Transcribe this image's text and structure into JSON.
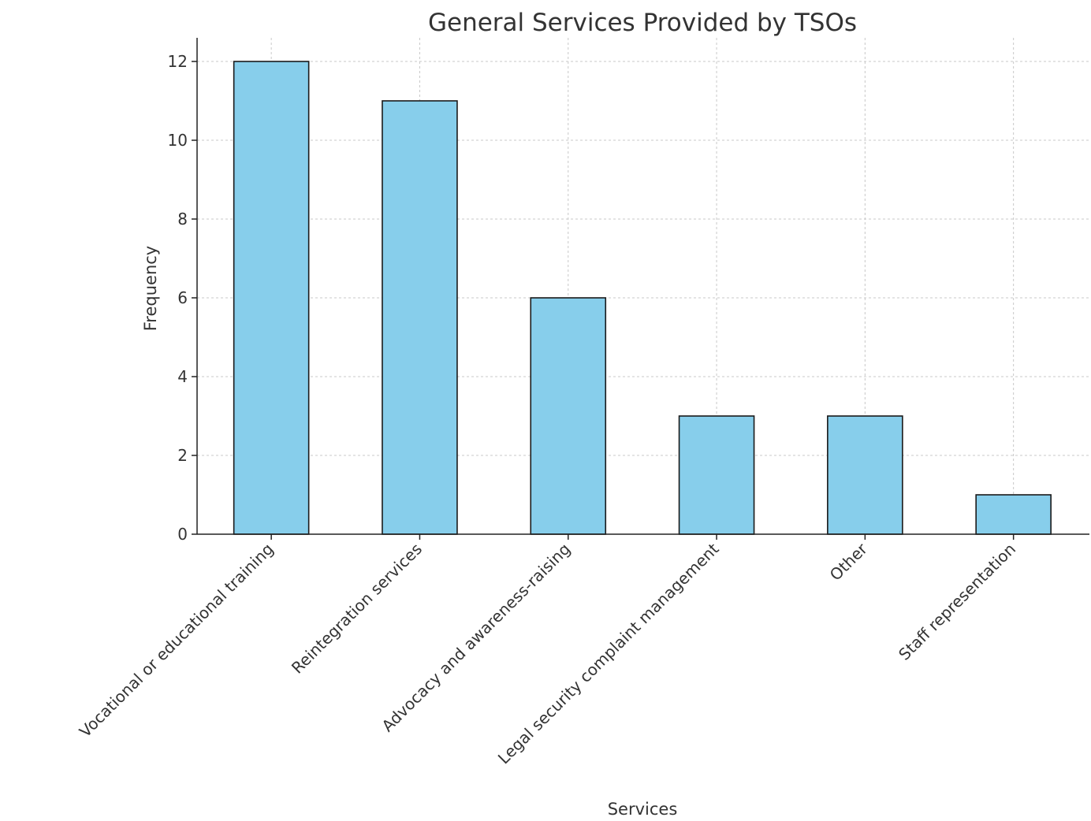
{
  "chart_data": {
    "type": "bar",
    "title": "General Services Provided by TSOs",
    "xlabel": "Services",
    "ylabel": "Frequency",
    "categories": [
      "Vocational or educational training",
      "Reintegration services",
      "Advocacy and awareness-raising",
      "Legal security complaint management",
      "Other",
      "Staff representation"
    ],
    "values": [
      12,
      11,
      6,
      3,
      3,
      1
    ],
    "ylim": [
      0,
      12.6
    ],
    "yticks": [
      0,
      2,
      4,
      6,
      8,
      10,
      12
    ],
    "grid": true,
    "bar_color": "#87CEEB",
    "bar_edge_color": "#1a1a1a"
  }
}
